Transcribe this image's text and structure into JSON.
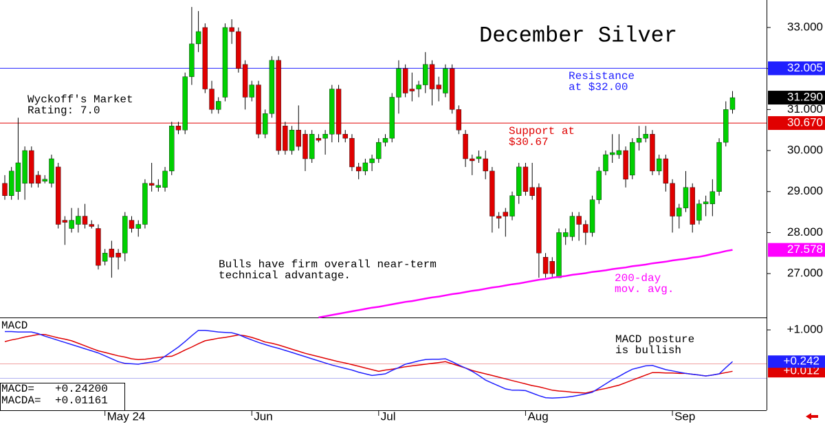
{
  "chart_data": [
    {
      "type": "candlestick",
      "title": "December Silver",
      "candles": {
        "open": [
          29.2,
          28.9,
          29.0,
          29.2,
          30.0,
          29.4,
          29.25,
          29.2,
          29.6,
          28.3,
          28.1,
          28.2,
          28.4,
          28.2,
          28.1,
          27.3,
          27.6,
          27.5,
          27.5,
          28.3,
          28.1,
          28.2,
          29.2,
          29.1,
          29.1,
          29.5,
          30.6,
          30.5,
          31.8,
          32.6,
          33.0,
          31.5,
          31.0,
          31.3,
          33.0,
          32.9,
          32.1,
          31.3,
          31.6,
          30.4,
          30.9,
          32.2,
          30.6,
          30.0,
          30.5,
          30.4,
          29.8,
          30.3,
          30.3,
          30.4,
          31.5,
          30.4,
          30.3,
          29.6,
          29.5,
          29.7,
          29.8,
          30.2,
          30.3,
          31.3,
          32.0,
          31.5,
          31.5,
          31.6,
          32.1,
          31.6,
          31.4,
          32.0,
          31.0,
          30.4,
          29.8,
          29.8,
          29.8,
          29.5,
          28.4,
          28.5,
          28.4,
          28.9,
          29.6,
          29.1,
          29.1,
          27.4,
          27.3,
          26.9,
          27.9,
          27.9,
          28.4,
          28.2,
          28.0,
          28.8,
          29.5,
          29.9,
          29.9,
          30.0,
          29.4,
          30.2,
          30.3,
          30.4,
          29.5,
          29.8,
          29.2,
          28.4,
          28.6,
          29.1,
          28.3,
          28.7,
          28.7,
          29.0,
          30.2,
          31.0
        ],
        "high": [
          29.4,
          29.6,
          30.8,
          30.1,
          30.1,
          29.5,
          29.4,
          29.9,
          29.7,
          28.4,
          28.6,
          28.6,
          28.7,
          28.3,
          28.2,
          27.6,
          27.8,
          27.6,
          28.5,
          28.4,
          28.3,
          29.3,
          29.7,
          29.3,
          29.6,
          30.7,
          30.7,
          31.9,
          33.5,
          33.4,
          33.1,
          31.7,
          31.3,
          33.1,
          33.2,
          33.0,
          32.2,
          31.7,
          31.7,
          31.0,
          32.3,
          32.3,
          30.7,
          30.6,
          31.1,
          30.5,
          30.5,
          30.4,
          30.5,
          31.6,
          31.6,
          30.5,
          30.4,
          29.7,
          29.8,
          29.9,
          30.3,
          30.4,
          31.4,
          32.2,
          32.1,
          31.9,
          31.7,
          32.4,
          32.2,
          31.8,
          32.1,
          32.1,
          31.1,
          30.5,
          29.9,
          30.0,
          30.0,
          29.6,
          28.5,
          28.6,
          29.0,
          29.7,
          29.7,
          29.7,
          29.2,
          27.5,
          27.4,
          28.1,
          28.1,
          28.5,
          28.5,
          28.3,
          28.9,
          29.6,
          30.0,
          30.4,
          30.4,
          30.1,
          30.3,
          30.6,
          30.6,
          30.5,
          29.9,
          29.9,
          29.3,
          28.7,
          29.5,
          29.2,
          28.8,
          28.9,
          29.3,
          30.3,
          31.2,
          31.45
        ],
        "low": [
          28.8,
          28.8,
          28.8,
          28.8,
          29.1,
          29.1,
          29.2,
          29.1,
          28.1,
          27.7,
          28.0,
          28.0,
          28.1,
          28.1,
          27.1,
          27.2,
          26.9,
          27.1,
          27.3,
          28.0,
          27.9,
          28.1,
          29.0,
          29.0,
          29.0,
          29.4,
          30.4,
          30.4,
          31.6,
          32.4,
          31.4,
          30.9,
          30.9,
          31.2,
          32.6,
          31.9,
          31.0,
          31.2,
          30.3,
          30.3,
          30.8,
          29.9,
          29.9,
          29.9,
          30.0,
          29.5,
          29.7,
          30.2,
          29.9,
          30.2,
          30.2,
          30.2,
          29.5,
          29.3,
          29.4,
          29.5,
          29.7,
          30.1,
          30.2,
          30.9,
          31.3,
          31.2,
          31.3,
          31.4,
          31.1,
          31.2,
          31.3,
          30.9,
          30.4,
          29.6,
          29.4,
          29.7,
          29.3,
          28.0,
          28.1,
          27.9,
          28.3,
          28.7,
          28.9,
          28.8,
          26.9,
          26.9,
          26.9,
          26.9,
          27.7,
          27.8,
          27.8,
          27.7,
          27.9,
          28.7,
          29.4,
          29.7,
          29.8,
          29.1,
          29.3,
          30.0,
          30.2,
          29.4,
          29.4,
          29.0,
          28.0,
          28.1,
          28.5,
          28.0,
          28.2,
          28.4,
          28.4,
          28.9,
          30.1,
          30.9
        ],
        "close": [
          28.9,
          29.5,
          29.7,
          30.0,
          29.2,
          29.2,
          29.3,
          29.8,
          28.2,
          28.25,
          28.3,
          28.4,
          28.2,
          28.15,
          27.2,
          27.5,
          27.4,
          27.4,
          28.4,
          28.1,
          28.2,
          29.2,
          29.15,
          29.15,
          29.5,
          30.6,
          30.5,
          31.8,
          32.6,
          32.9,
          31.5,
          31.0,
          31.2,
          33.0,
          32.9,
          32.0,
          31.3,
          31.6,
          30.4,
          30.9,
          32.2,
          30.0,
          30.0,
          30.5,
          30.1,
          29.8,
          30.4,
          30.25,
          30.4,
          31.5,
          30.4,
          30.3,
          29.6,
          29.5,
          29.7,
          29.8,
          30.2,
          30.3,
          31.3,
          32.0,
          31.4,
          31.45,
          31.6,
          32.1,
          31.5,
          31.5,
          32.0,
          31.0,
          30.5,
          29.8,
          29.75,
          29.85,
          29.5,
          28.4,
          28.35,
          28.4,
          28.9,
          29.6,
          29.0,
          28.9,
          27.5,
          27.0,
          27.0,
          28.0,
          28.0,
          28.4,
          28.2,
          28.0,
          28.8,
          29.5,
          29.9,
          29.95,
          30.0,
          29.3,
          30.2,
          30.3,
          30.4,
          29.5,
          29.8,
          29.2,
          28.4,
          28.6,
          29.1,
          28.2,
          28.7,
          28.75,
          29.0,
          30.2,
          31.0,
          31.29
        ]
      },
      "up_color": "#00d000",
      "down_color": "#e00000",
      "last_price": {
        "value": 31.29,
        "label": "31.290"
      },
      "moving_average": {
        "color": "#ff00ff",
        "label": "27.578",
        "values": [
          null,
          null,
          null,
          null,
          null,
          null,
          null,
          null,
          null,
          null,
          null,
          null,
          null,
          null,
          null,
          null,
          null,
          null,
          null,
          null,
          null,
          null,
          null,
          null,
          null,
          null,
          null,
          null,
          null,
          null,
          null,
          null,
          null,
          null,
          null,
          null,
          null,
          null,
          null,
          null,
          null,
          null,
          null,
          null,
          null,
          null,
          null,
          25.93,
          25.96,
          25.99,
          26.02,
          26.05,
          26.08,
          26.11,
          26.14,
          26.17,
          26.19,
          26.22,
          26.25,
          26.28,
          26.31,
          26.33,
          26.36,
          26.39,
          26.42,
          26.44,
          26.47,
          26.5,
          26.52,
          26.55,
          26.58,
          26.6,
          26.63,
          26.66,
          26.68,
          26.71,
          26.74,
          26.76,
          26.79,
          26.82,
          26.85,
          26.87,
          26.9,
          26.92,
          26.94,
          26.97,
          26.99,
          27.01,
          27.04,
          27.06,
          27.08,
          27.11,
          27.13,
          27.15,
          27.18,
          27.2,
          27.22,
          27.25,
          27.27,
          27.29,
          27.32,
          27.34,
          27.36,
          27.39,
          27.41,
          27.44,
          27.48,
          27.51,
          27.55,
          27.578
        ]
      },
      "levels": [
        {
          "value": 32.005,
          "label": "32.005",
          "color": "#2020ff"
        },
        {
          "value": 30.67,
          "label": "30.670",
          "color": "#e00000"
        }
      ],
      "xlim": [
        -0.72,
        114.1
      ],
      "ylim": [
        25.93,
        33.67
      ],
      "yticks": [
        {
          "value": 27,
          "label": "27.000"
        },
        {
          "value": 28,
          "label": "28.000"
        },
        {
          "value": 29,
          "label": "29.000"
        },
        {
          "value": 30,
          "label": "30.000"
        },
        {
          "value": 31,
          "label": "31.000"
        },
        {
          "value": 32,
          "label": "32.000"
        },
        {
          "value": 33,
          "label": "33.000"
        }
      ],
      "xticks": [
        {
          "value": 15,
          "label": "May 24"
        },
        {
          "value": 37,
          "label": "Jun"
        },
        {
          "value": 56,
          "label": "Jul"
        },
        {
          "value": 78,
          "label": "Aug"
        },
        {
          "value": 100,
          "label": "Sep"
        }
      ],
      "annotations": [
        {
          "lines": [
            "Wyckoff's Market",
            "Rating: 7.0"
          ],
          "color": "#000000"
        },
        {
          "lines": [
            "Resistance",
            "at $32.00"
          ],
          "color": "#2020ff"
        },
        {
          "lines": [
            "Support at",
            "$30.67"
          ],
          "color": "#e00000"
        },
        {
          "lines": [
            "Bulls have firm overall near-term",
            "technical advantage."
          ],
          "color": "#000000"
        },
        {
          "lines": [
            "200-day",
            "mov. avg."
          ],
          "color": "#ff00ff"
        }
      ]
    },
    {
      "type": "macd",
      "title": "MACD",
      "xlim": [
        -0.72,
        114.1
      ],
      "ylim": [
        -0.92,
        1.28
      ],
      "yticks": [
        {
          "value": 1,
          "label": "+1.000"
        }
      ],
      "series": [
        {
          "name": "MACD=",
          "readout": "+0.24200",
          "value_label": "+0.242",
          "color": "#2020ff",
          "values": [
            0.96,
            0.96,
            0.95,
            0.95,
            0.95,
            0.91,
            0.85,
            0.8,
            0.75,
            0.7,
            0.65,
            0.6,
            0.55,
            0.5,
            0.45,
            0.38,
            0.31,
            0.24,
            0.2,
            0.19,
            0.18,
            0.21,
            0.23,
            0.26,
            0.37,
            0.48,
            0.59,
            0.72,
            0.86,
            0.99,
            0.99,
            0.97,
            0.95,
            0.94,
            0.93,
            0.89,
            0.82,
            0.76,
            0.7,
            0.65,
            0.6,
            0.56,
            0.51,
            0.46,
            0.41,
            0.36,
            0.31,
            0.26,
            0.21,
            0.16,
            0.12,
            0.08,
            0.04,
            -0.01,
            -0.05,
            -0.09,
            -0.07,
            -0.05,
            0.03,
            0.1,
            0.18,
            0.22,
            0.26,
            0.29,
            0.3,
            0.3,
            0.31,
            0.24,
            0.16,
            0.09,
            0.01,
            -0.09,
            -0.2,
            -0.27,
            -0.34,
            -0.41,
            -0.44,
            -0.44,
            -0.45,
            -0.51,
            -0.57,
            -0.62,
            -0.63,
            -0.62,
            -0.61,
            -0.59,
            -0.56,
            -0.53,
            -0.49,
            -0.39,
            -0.29,
            -0.19,
            -0.11,
            -0.02,
            0.06,
            0.1,
            0.14,
            0.15,
            0.1,
            0.05,
            0.02,
            -0.01,
            -0.04,
            -0.06,
            -0.08,
            -0.1,
            -0.08,
            -0.05,
            0.1,
            0.242
          ]
        },
        {
          "name": "MACDA=",
          "readout": "+0.01161",
          "value_label": "+0.012",
          "color": "#e00000",
          "values": [
            0.72,
            0.76,
            0.79,
            0.83,
            0.86,
            0.89,
            0.89,
            0.85,
            0.81,
            0.78,
            0.74,
            0.68,
            0.62,
            0.56,
            0.5,
            0.46,
            0.42,
            0.38,
            0.35,
            0.31,
            0.29,
            0.3,
            0.32,
            0.34,
            0.36,
            0.37,
            0.44,
            0.52,
            0.59,
            0.67,
            0.74,
            0.77,
            0.8,
            0.82,
            0.85,
            0.88,
            0.86,
            0.82,
            0.77,
            0.71,
            0.68,
            0.64,
            0.59,
            0.54,
            0.49,
            0.44,
            0.4,
            0.36,
            0.32,
            0.28,
            0.24,
            0.21,
            0.17,
            0.13,
            0.09,
            0.05,
            0.01,
            0.04,
            0.06,
            0.09,
            0.12,
            0.14,
            0.16,
            0.18,
            0.2,
            0.22,
            0.24,
            0.19,
            0.14,
            0.09,
            0.03,
            -0.01,
            -0.05,
            -0.09,
            -0.13,
            -0.17,
            -0.21,
            -0.25,
            -0.29,
            -0.33,
            -0.36,
            -0.4,
            -0.44,
            -0.46,
            -0.47,
            -0.49,
            -0.5,
            -0.51,
            -0.47,
            -0.43,
            -0.4,
            -0.36,
            -0.32,
            -0.26,
            -0.2,
            -0.14,
            -0.08,
            -0.02,
            -0.02,
            -0.03,
            -0.03,
            -0.04,
            -0.04,
            -0.06,
            -0.08,
            -0.1,
            -0.08,
            -0.05,
            -0.02,
            0.01161
          ]
        }
      ],
      "annotations": [
        {
          "lines": [
            "MACD posture",
            "is bullish"
          ],
          "color": "#000000"
        }
      ]
    }
  ]
}
